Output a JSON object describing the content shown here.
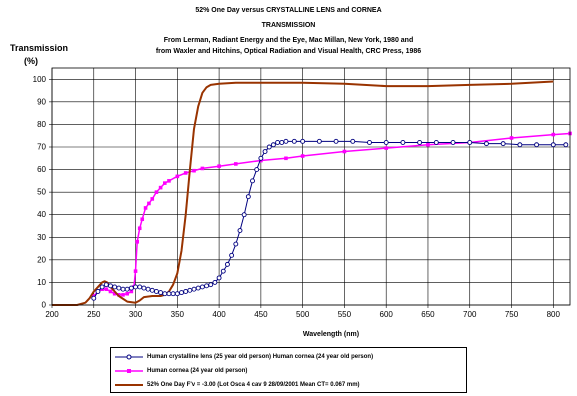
{
  "chart_data": {
    "type": "line",
    "title_lines": [
      "52% One Day versus CRYSTALLINE LENS and CORNEA",
      "TRANSMISSION",
      "From Lerman, Radiant Energy and the Eye, Mac Millan, New York, 1980 and",
      "from Waxler and Hitchins, Optical Radiation and Visual Health, CRC Press, 1986"
    ],
    "ylabel_line1": "Transmission",
    "ylabel_line2": "(%)",
    "xlabel": "Wavelength (nm)",
    "xlim": [
      200,
      820
    ],
    "ylim": [
      0,
      105
    ],
    "xticks": [
      200,
      250,
      300,
      350,
      400,
      450,
      500,
      550,
      600,
      650,
      700,
      750,
      800
    ],
    "yticks": [
      0,
      10,
      20,
      30,
      40,
      50,
      60,
      70,
      80,
      90,
      100
    ],
    "grid": true,
    "legend_position": "bottom",
    "series": [
      {
        "name": "Human crystalline lens (25 year old person) Human cornea (24 year old person)",
        "color": "#000080",
        "marker": "circle",
        "x": [
          250,
          255,
          260,
          265,
          270,
          275,
          280,
          285,
          290,
          295,
          300,
          305,
          310,
          315,
          320,
          325,
          330,
          335,
          340,
          345,
          350,
          355,
          360,
          365,
          370,
          375,
          380,
          385,
          390,
          395,
          400,
          405,
          410,
          415,
          420,
          425,
          430,
          435,
          440,
          445,
          450,
          455,
          460,
          465,
          470,
          475,
          480,
          490,
          500,
          520,
          540,
          560,
          580,
          600,
          620,
          640,
          660,
          680,
          700,
          720,
          740,
          760,
          780,
          800,
          815
        ],
        "y": [
          3,
          6,
          8,
          9,
          8.5,
          8,
          7.5,
          7,
          7,
          7.5,
          8,
          8,
          7.5,
          7,
          6.5,
          6,
          5.5,
          5,
          5,
          5,
          5,
          5.5,
          6,
          6.5,
          7,
          7.5,
          8,
          8.5,
          9,
          10,
          12,
          15,
          18,
          22,
          27,
          33,
          40,
          48,
          55,
          60,
          65,
          68,
          70,
          71,
          72,
          72,
          72.5,
          72.5,
          72.5,
          72.5,
          72.5,
          72.5,
          72,
          72,
          72,
          72,
          72,
          72,
          72,
          71.5,
          71.5,
          71,
          71,
          71,
          71
        ]
      },
      {
        "name": "Human cornea (24 year old person)",
        "color": "#ff00ff",
        "marker": "square",
        "x": [
          250,
          255,
          260,
          265,
          270,
          275,
          280,
          285,
          290,
          295,
          298,
          300,
          302,
          305,
          308,
          312,
          316,
          320,
          325,
          330,
          335,
          340,
          350,
          360,
          370,
          380,
          400,
          420,
          450,
          480,
          500,
          550,
          600,
          650,
          700,
          750,
          800,
          820
        ],
        "y": [
          4,
          6,
          7,
          7,
          6,
          5,
          4.5,
          4.5,
          5,
          6,
          8,
          15,
          28,
          34,
          38,
          43,
          45,
          47,
          50,
          52,
          54,
          55,
          57,
          58.5,
          59.5,
          60.5,
          61.5,
          62.5,
          64,
          65,
          66,
          68,
          69.5,
          71,
          72,
          74,
          75.5,
          76
        ]
      },
      {
        "name": "52% One Day F'v = -3.00 (Lot Osca 4 cav 9 28/09/2001 Mean CT= 0.067 mm)",
        "color": "#993300",
        "marker": "none",
        "x": [
          200,
          230,
          240,
          245,
          250,
          255,
          260,
          263,
          266,
          270,
          275,
          280,
          290,
          300,
          305,
          310,
          320,
          330,
          335,
          340,
          345,
          350,
          355,
          360,
          365,
          370,
          375,
          380,
          385,
          390,
          400,
          420,
          450,
          500,
          550,
          600,
          650,
          700,
          750,
          800
        ],
        "y": [
          0,
          0,
          1,
          3,
          6,
          8,
          10,
          10.5,
          10,
          8,
          6,
          4,
          1.5,
          1,
          2,
          3.5,
          4,
          4,
          4.5,
          6,
          9,
          14,
          24,
          40,
          60,
          78,
          88,
          94,
          96.5,
          97.5,
          98,
          98.5,
          98.5,
          98.5,
          98,
          97,
          97,
          97.5,
          98,
          99
        ]
      }
    ]
  }
}
